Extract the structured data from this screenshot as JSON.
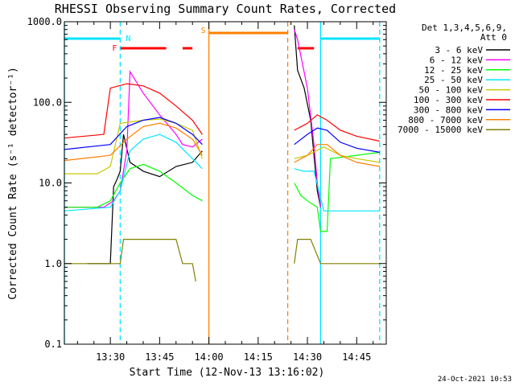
{
  "chart_data": {
    "type": "line",
    "title": "RHESSI Observing Summary Count Rates, Corrected",
    "xlabel": "Start Time (12-Nov-13 13:16:02)",
    "ylabel": "Corrected Count Rate (s⁻¹ detector⁻¹)",
    "y_scale": "log",
    "ylim": [
      0.1,
      1000
    ],
    "y_ticks": [
      {
        "value": 0.1,
        "label": "0.1"
      },
      {
        "value": 1,
        "label": "1.0"
      },
      {
        "value": 10,
        "label": "10.0"
      },
      {
        "value": 100,
        "label": "100.0"
      },
      {
        "value": 1000,
        "label": "1000.0"
      }
    ],
    "xlim": [
      "13:16",
      "14:54"
    ],
    "x_ticks": [
      {
        "value": "13:30",
        "label": "13:30"
      },
      {
        "value": "13:45",
        "label": "13:45"
      },
      {
        "value": "14:00",
        "label": "14:00"
      },
      {
        "value": "14:15",
        "label": "14:15"
      },
      {
        "value": "14:30",
        "label": "14:30"
      },
      {
        "value": "14:45",
        "label": "14:45"
      }
    ],
    "legend_header": [
      "Det 1,3,4,5,6,9,",
      "Att 0"
    ],
    "legend_position": "right",
    "footer": "24-Oct-2021 10:53",
    "flags": {
      "N": {
        "label": "N",
        "color": "#00e5ff",
        "segments": [
          [
            "13:16",
            "13:33"
          ],
          [
            "14:34",
            "14:52"
          ]
        ]
      },
      "F": {
        "label": "F",
        "color": "#ff0000",
        "segments": [
          [
            "13:33",
            "13:47"
          ],
          [
            "13:52",
            "13:55"
          ],
          [
            "14:27",
            "14:32"
          ]
        ]
      },
      "S": {
        "label": "S",
        "color": "#ff7f00",
        "segments": [
          [
            "14:00",
            "14:24"
          ]
        ]
      }
    },
    "vlines": [
      {
        "x": "13:16",
        "color": "#00e5ff",
        "style": "solid"
      },
      {
        "x": "13:33",
        "color": "#00e5ff",
        "style": "dashed"
      },
      {
        "x": "14:00",
        "color": "#ff7f00",
        "style": "solid"
      },
      {
        "x": "14:24",
        "color": "#ff7f00",
        "style": "dashed"
      },
      {
        "x": "14:34",
        "color": "#00e5ff",
        "style": "solid"
      },
      {
        "x": "14:52",
        "color": "#00e5ff",
        "style": "dashed"
      }
    ],
    "series": [
      {
        "name": "3 - 6 keV",
        "color": "#000000",
        "x": [
          "13:23",
          "13:30",
          "13:31",
          "13:32",
          "13:33",
          "13:34",
          "13:36",
          "13:40",
          "13:45",
          "13:50",
          "13:55",
          "13:58",
          "14:26",
          "14:27",
          "14:29",
          "14:31",
          "14:33",
          "14:34"
        ],
        "y": [
          1,
          1,
          9,
          11,
          14,
          40,
          18,
          14,
          12,
          16,
          18,
          25,
          900,
          250,
          150,
          60,
          8,
          5
        ]
      },
      {
        "name": "6 - 12 keV",
        "color": "#ff00ff",
        "x": [
          "13:16",
          "13:28",
          "13:31",
          "13:33",
          "13:35",
          "13:36",
          "13:40",
          "13:45",
          "13:50",
          "13:52",
          "13:55",
          "13:58",
          "14:26",
          "14:27",
          "14:30",
          "14:32",
          "14:33",
          "14:34"
        ],
        "y": [
          5,
          5,
          6,
          8,
          25,
          240,
          130,
          70,
          40,
          30,
          28,
          35,
          800,
          600,
          150,
          30,
          10,
          5
        ]
      },
      {
        "name": "12 - 25 keV",
        "color": "#00ff00",
        "x": [
          "13:16",
          "13:26",
          "13:30",
          "13:33",
          "13:36",
          "13:40",
          "13:45",
          "13:50",
          "13:55",
          "13:58",
          "14:26",
          "14:28",
          "14:30",
          "14:33",
          "14:34",
          "14:36",
          "14:37",
          "14:52"
        ],
        "y": [
          5,
          5,
          6,
          10,
          15,
          17,
          14,
          10,
          7,
          6,
          10,
          7,
          6,
          5,
          2.5,
          2.5,
          20,
          24
        ]
      },
      {
        "name": "25 - 50 keV",
        "color": "#00e5ff",
        "x": [
          "13:16",
          "13:30",
          "13:33",
          "13:36",
          "13:40",
          "13:45",
          "13:50",
          "13:55",
          "13:58",
          "14:26",
          "14:29",
          "14:32",
          "14:35",
          "14:40",
          "14:45",
          "14:52"
        ],
        "y": [
          4.5,
          5,
          8,
          25,
          35,
          40,
          32,
          20,
          15,
          15,
          14,
          14,
          4.5,
          4.5,
          4.5,
          4.5
        ]
      },
      {
        "name": "50 - 100 keV",
        "color": "#c8c800",
        "x": [
          "13:16",
          "13:26",
          "13:30",
          "13:33",
          "13:40",
          "13:45",
          "13:50",
          "13:55",
          "13:58",
          "14:26",
          "14:30",
          "14:35",
          "14:40",
          "14:45",
          "14:52"
        ],
        "y": [
          13,
          13,
          16,
          55,
          60,
          62,
          55,
          45,
          20,
          20,
          22,
          28,
          22,
          20,
          18
        ]
      },
      {
        "name": "100 - 300 keV",
        "color": "#ff0000",
        "x": [
          "13:16",
          "13:28",
          "13:30",
          "13:35",
          "13:40",
          "13:45",
          "13:50",
          "13:55",
          "13:58",
          "14:26",
          "14:30",
          "14:33",
          "14:36",
          "14:40",
          "14:45",
          "14:52"
        ],
        "y": [
          36,
          40,
          150,
          170,
          160,
          130,
          90,
          60,
          40,
          45,
          55,
          70,
          60,
          45,
          38,
          33
        ]
      },
      {
        "name": "300 - 800 keV",
        "color": "#0000ff",
        "x": [
          "13:16",
          "13:30",
          "13:35",
          "13:40",
          "13:45",
          "13:50",
          "13:55",
          "13:58",
          "14:26",
          "14:30",
          "14:33",
          "14:36",
          "14:40",
          "14:45",
          "14:52"
        ],
        "y": [
          26,
          30,
          50,
          60,
          65,
          55,
          40,
          30,
          30,
          40,
          48,
          45,
          32,
          27,
          24
        ]
      },
      {
        "name": "800 - 7000 keV",
        "color": "#ff7f00",
        "x": [
          "13:16",
          "13:30",
          "13:35",
          "13:40",
          "13:45",
          "13:50",
          "13:55",
          "13:58",
          "14:26",
          "14:30",
          "14:33",
          "14:36",
          "14:40",
          "14:45",
          "14:52"
        ],
        "y": [
          19,
          22,
          35,
          50,
          55,
          48,
          35,
          22,
          18,
          22,
          30,
          30,
          22,
          18,
          16
        ]
      },
      {
        "name": "7000 - 15000 keV",
        "color": "#808000",
        "x": [
          "13:16",
          "13:30",
          "13:33",
          "13:34",
          "13:50",
          "13:52",
          "13:55",
          "13:56",
          "14:26",
          "14:27",
          "14:31",
          "14:34",
          "14:40",
          "14:52"
        ],
        "y": [
          1,
          1,
          1,
          2,
          2,
          1,
          1,
          0.6,
          1,
          2,
          2,
          1,
          1,
          1
        ]
      }
    ]
  }
}
